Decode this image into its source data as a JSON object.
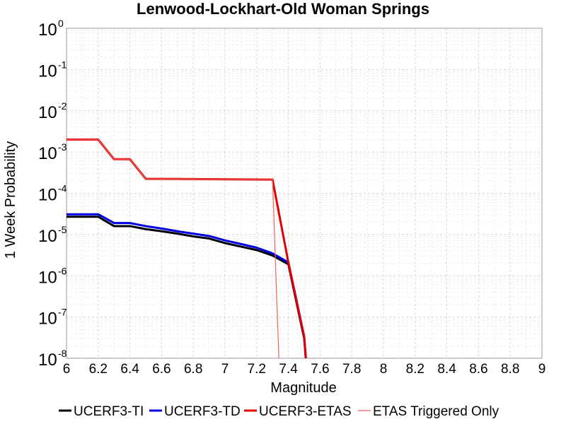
{
  "chart_data": {
    "type": "line",
    "title": "Lenwood-Lockhart-Old Woman Springs",
    "xlabel": "Magnitude",
    "ylabel": "1 Week Probability",
    "xlim": [
      6,
      9
    ],
    "ylim": [
      1e-08,
      1
    ],
    "yscale": "log",
    "grid": true,
    "legend_position": "bottom",
    "x_ticks": [
      "6",
      "6.2",
      "6.4",
      "6.6",
      "6.8",
      "7",
      "7.2",
      "7.4",
      "7.6",
      "7.8",
      "8",
      "8.2",
      "8.4",
      "8.6",
      "8.8",
      "9"
    ],
    "y_ticks": [
      {
        "base": "10",
        "exp": "-8"
      },
      {
        "base": "10",
        "exp": "-7"
      },
      {
        "base": "10",
        "exp": "-6"
      },
      {
        "base": "10",
        "exp": "-5"
      },
      {
        "base": "10",
        "exp": "-4"
      },
      {
        "base": "10",
        "exp": "-3"
      },
      {
        "base": "10",
        "exp": "-2"
      },
      {
        "base": "10",
        "exp": "-1"
      },
      {
        "base": "10",
        "exp": "0"
      }
    ],
    "series": [
      {
        "name": "UCERF3-TI",
        "color": "#000000",
        "width": 3,
        "points": [
          [
            6.0,
            2.7e-05
          ],
          [
            6.2,
            2.7e-05
          ],
          [
            6.3,
            1.6e-05
          ],
          [
            6.4,
            1.6e-05
          ],
          [
            6.5,
            1.35e-05
          ],
          [
            6.6,
            1.2e-05
          ],
          [
            6.7,
            1.05e-05
          ],
          [
            6.8,
            9e-06
          ],
          [
            6.9,
            8e-06
          ],
          [
            7.0,
            6.2e-06
          ],
          [
            7.1,
            5.1e-06
          ],
          [
            7.2,
            4.2e-06
          ],
          [
            7.3,
            3.1e-06
          ],
          [
            7.4,
            1.9e-06
          ],
          [
            7.5,
            3e-08
          ],
          [
            7.51,
            1e-08
          ]
        ]
      },
      {
        "name": "UCERF3-TD",
        "color": "#0000e0",
        "width": 3,
        "points": [
          [
            6.0,
            3.1e-05
          ],
          [
            6.2,
            3.1e-05
          ],
          [
            6.3,
            1.9e-05
          ],
          [
            6.4,
            1.9e-05
          ],
          [
            6.5,
            1.6e-05
          ],
          [
            6.6,
            1.4e-05
          ],
          [
            6.7,
            1.2e-05
          ],
          [
            6.8,
            1.05e-05
          ],
          [
            6.9,
            9.2e-06
          ],
          [
            7.0,
            7.2e-06
          ],
          [
            7.1,
            5.9e-06
          ],
          [
            7.2,
            4.8e-06
          ],
          [
            7.3,
            3.5e-06
          ],
          [
            7.4,
            2.1e-06
          ],
          [
            7.5,
            3.3e-08
          ],
          [
            7.51,
            1e-08
          ]
        ]
      },
      {
        "name": "UCERF3-ETAS",
        "color": "#e00000",
        "width": 3,
        "points": [
          [
            6.0,
            0.002
          ],
          [
            6.2,
            0.002
          ],
          [
            6.3,
            0.00067
          ],
          [
            6.4,
            0.00067
          ],
          [
            6.5,
            0.000225
          ],
          [
            7.3,
            0.000215
          ],
          [
            7.4,
            2.1e-06
          ],
          [
            7.5,
            3.3e-08
          ],
          [
            7.51,
            1e-08
          ]
        ]
      },
      {
        "name": "ETAS Triggered Only",
        "color": "#f06060",
        "width": 1.2,
        "points": [
          [
            6.0,
            0.002
          ],
          [
            6.2,
            0.002
          ],
          [
            6.3,
            0.00067
          ],
          [
            6.4,
            0.00067
          ],
          [
            6.5,
            0.000225
          ],
          [
            7.3,
            0.000215
          ],
          [
            7.34,
            1e-08
          ]
        ]
      }
    ]
  }
}
